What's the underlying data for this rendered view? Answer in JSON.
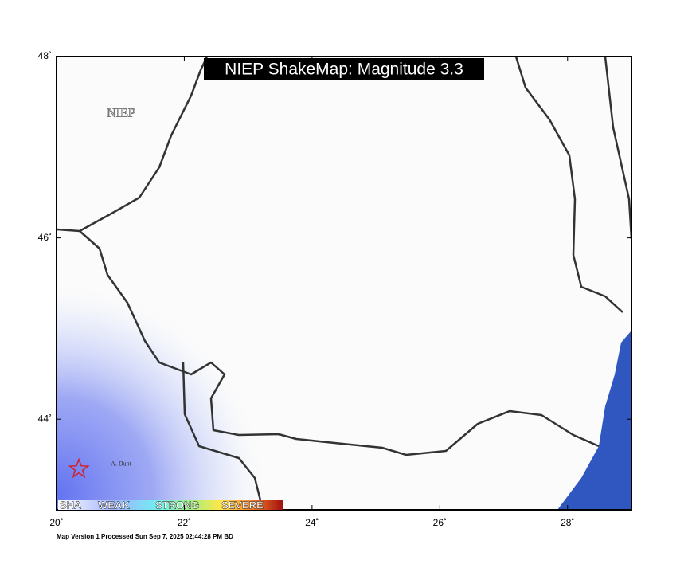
{
  "map": {
    "title": "NIEP ShakeMap: Magnitude 3.3",
    "agency_label": "NIEP",
    "xlim": [
      20,
      29
    ],
    "ylim": [
      43,
      48
    ],
    "xticks": [
      {
        "value": 20,
        "label": "20˚"
      },
      {
        "value": 22,
        "label": "22˚"
      },
      {
        "value": 24,
        "label": "24˚"
      },
      {
        "value": 26,
        "label": "26˚"
      },
      {
        "value": 28,
        "label": "28˚"
      }
    ],
    "yticks": [
      {
        "value": 44,
        "label": "44˚"
      },
      {
        "value": 46,
        "label": "46˚"
      },
      {
        "value": 48,
        "label": "48˚"
      }
    ],
    "epicenter": {
      "lon": 20.35,
      "lat": 43.45,
      "label": "A. Dunt"
    },
    "legend": [
      "SHA",
      "WEAK",
      "STRONG",
      "SEVERE"
    ],
    "footer": "Map Version 1 Processed Sun Sep  7, 2025 02:44:28 PM BD"
  }
}
